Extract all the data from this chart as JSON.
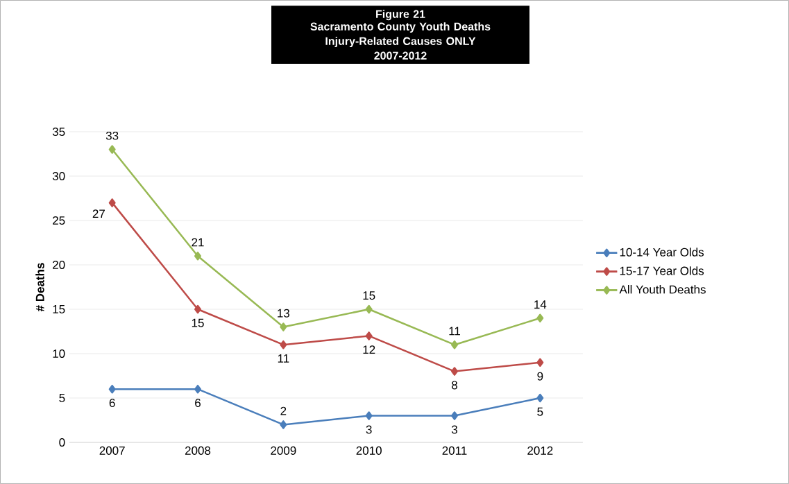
{
  "chart_data": {
    "type": "line",
    "title": "Figure 21",
    "subtitle": "Sacramento County Youth Deaths Injury-Related Causes ONLY 2007-2012",
    "ylabel": "# Deaths",
    "categories": [
      "2007",
      "2008",
      "2009",
      "2010",
      "2011",
      "2012"
    ],
    "series": [
      {
        "name": "10-14 Year Olds",
        "color": "#4a7ebb",
        "values": [
          6,
          6,
          2,
          3,
          3,
          5
        ]
      },
      {
        "name": "15-17 Year Olds",
        "color": "#be4b48",
        "values": [
          27,
          15,
          11,
          12,
          8,
          9
        ]
      },
      {
        "name": "All Youth Deaths",
        "color": "#98b954",
        "values": [
          33,
          21,
          13,
          15,
          11,
          14
        ]
      }
    ],
    "ylim": [
      0,
      35
    ],
    "yticks": [
      0,
      5,
      10,
      15,
      20,
      25,
      30,
      35
    ],
    "grid": "y",
    "legend": "right",
    "marker": "diamond",
    "line_style": "solid",
    "data_labels": true
  }
}
